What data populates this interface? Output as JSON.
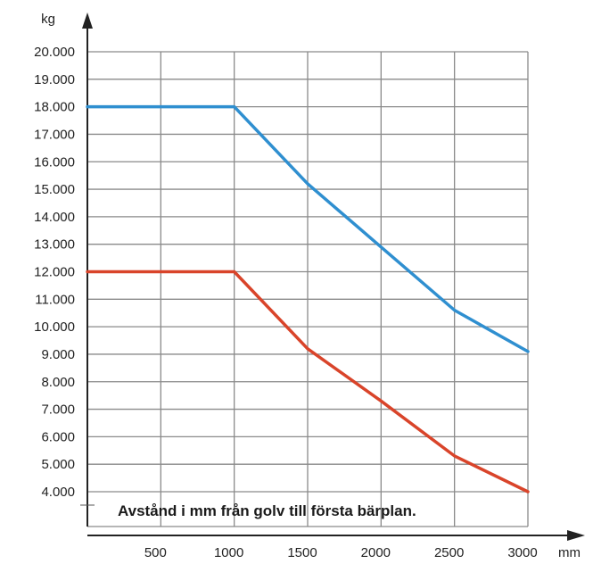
{
  "chart_data": {
    "type": "line",
    "ylabel": "kg",
    "xlabel": "mm",
    "annotation": "Avstånd i mm från golv till första bärplan.",
    "y_ticks": [
      "4.000",
      "5.000",
      "6.000",
      "7.000",
      "8.000",
      "9.000",
      "10.000",
      "11.000",
      "12.000",
      "13.000",
      "14.000",
      "15.000",
      "16.000",
      "17.000",
      "18.000",
      "19.000",
      "20.000"
    ],
    "x_ticks": [
      "500",
      "1000",
      "1500",
      "2000",
      "2500",
      "3000"
    ],
    "xlim": [
      0,
      3000
    ],
    "ylim": [
      4000,
      20000
    ],
    "grid": true,
    "series": [
      {
        "color": "#2f8fd0",
        "x": [
          0,
          1000,
          1500,
          2000,
          2500,
          3000
        ],
        "y": [
          18000,
          18000,
          15200,
          12900,
          10600,
          9100
        ]
      },
      {
        "color": "#d9442a",
        "x": [
          0,
          1000,
          1500,
          2000,
          2500,
          3000
        ],
        "y": [
          12000,
          12000,
          9200,
          7300,
          5300,
          4000
        ]
      }
    ]
  }
}
